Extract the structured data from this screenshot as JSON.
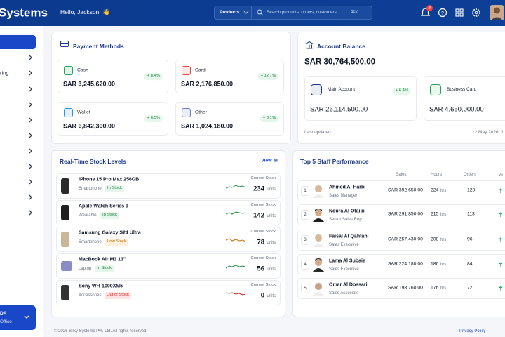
{
  "topbar": {
    "brand": "Systems",
    "greeting": "Hello, Jackson! 👋",
    "search_scope": "Products",
    "search_placeholder": "Search products, orders, customers...",
    "shortcut": "⌘K",
    "notification_count": "3"
  },
  "sidebar": {
    "partial_labels": [
      "ring"
    ],
    "workspace": {
      "name": "DA",
      "subtitle": "Office"
    }
  },
  "payment_methods": {
    "title": "Payment Methods",
    "methods": [
      {
        "name": "Cash",
        "change": "+ 8.4%",
        "amount": "SAR 3,245,620.00"
      },
      {
        "name": "Card",
        "change": "+ 12.7%",
        "amount": "SAR 2,176,850.00"
      },
      {
        "name": "Wallet",
        "change": "+ 6.5%",
        "amount": "SAR 6,842,300.00"
      },
      {
        "name": "Other",
        "change": "+ 3.1%",
        "amount": "SAR 1,024,180.00"
      }
    ]
  },
  "account_balance": {
    "title": "Account Balance",
    "total": "SAR 30,764,500.00",
    "accounts": [
      {
        "name": "Main Account",
        "change": "+ 6.4%",
        "amount": "SAR 26,114,500.00"
      },
      {
        "name": "Business Card",
        "amount": "SAR 4,650,000.00"
      }
    ],
    "last_updated_label": "Last updated",
    "last_updated": "12 May 2026, 1"
  },
  "stock": {
    "title": "Real-Time Stock Levels",
    "action": "View all",
    "items": [
      {
        "name": "iPhone 15 Pro Max 256GB",
        "category": "Smartphone",
        "status": "In Stock",
        "label": "Current Stock",
        "quantity": "234",
        "unit": "units"
      },
      {
        "name": "Apple Watch Series 9",
        "category": "Wearable",
        "status": "In Stock",
        "label": "Current Stock",
        "quantity": "142",
        "unit": "units"
      },
      {
        "name": "Samsung Galaxy S24 Ultra",
        "category": "Smartphone",
        "status": "Low Stock",
        "label": "Current Stock",
        "quantity": "78",
        "unit": "units"
      },
      {
        "name": "MacBook Air M3 13\"",
        "category": "Laptop",
        "status": "In Stock",
        "label": "Current Stock",
        "quantity": "56",
        "unit": "units"
      },
      {
        "name": "Sony WH-1000XM5",
        "category": "Accessories",
        "status": "Out of Stock",
        "label": "Current Stock",
        "quantity": "0",
        "unit": "units"
      }
    ]
  },
  "staff": {
    "title": "Top 5 Staff Performance",
    "columns": [
      "Sales",
      "Hours",
      "Orders",
      "vs"
    ],
    "rows": [
      {
        "rank": "1",
        "name": "Ahmed Al Harbi",
        "role": "Sales Manager",
        "sales": "SAR 392,650.00",
        "hours": "224",
        "hours_unit": "hrs",
        "orders": "128"
      },
      {
        "rank": "2",
        "name": "Noura Al Otaibi",
        "role": "Senior Sales Rep.",
        "sales": "SAR 291,850.00",
        "hours": "215",
        "hours_unit": "hrs",
        "orders": "113"
      },
      {
        "rank": "3",
        "name": "Faisal Al Qahtani",
        "role": "Sales Executive",
        "sales": "SAR 257,430.00",
        "hours": "208",
        "hours_unit": "hrs",
        "orders": "96"
      },
      {
        "rank": "4",
        "name": "Lama Al Subaie",
        "role": "Sales Executive",
        "sales": "SAR 224,180.00",
        "hours": "186",
        "hours_unit": "hrs",
        "orders": "84"
      },
      {
        "rank": "5",
        "name": "Omar Al Dossari",
        "role": "Sales Associate",
        "sales": "SAR 198,760.00",
        "hours": "176",
        "hours_unit": "hrs",
        "orders": "72"
      }
    ]
  },
  "footer": {
    "copyright": "© 2026 Silky Systems Pvt. Ltd. All rights reserved.",
    "link": "Privacy Policy"
  }
}
